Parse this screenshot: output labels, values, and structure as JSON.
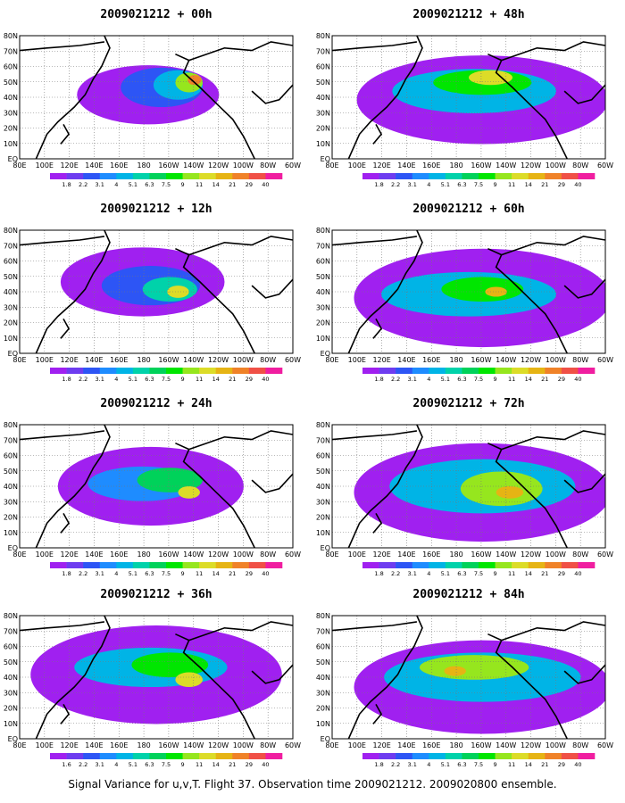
{
  "caption": "Signal Variance for u,v,T. Flight 37. Observation time 2009021212. 2009020800 ensemble.",
  "panels": [
    {
      "title": "2009021212 + 00h",
      "lead_hours": 0
    },
    {
      "title": "2009021212 + 48h",
      "lead_hours": 48
    },
    {
      "title": "2009021212 + 12h",
      "lead_hours": 12
    },
    {
      "title": "2009021212 + 60h",
      "lead_hours": 60
    },
    {
      "title": "2009021212 + 24h",
      "lead_hours": 24
    },
    {
      "title": "2009021212 + 72h",
      "lead_hours": 72
    },
    {
      "title": "2009021212 + 36h",
      "lead_hours": 36
    },
    {
      "title": "2009021212 + 84h",
      "lead_hours": 84
    }
  ],
  "map": {
    "lon_labels": [
      "80E",
      "100E",
      "120E",
      "140E",
      "160E",
      "180",
      "160W",
      "140W",
      "120W",
      "100W",
      "80W",
      "60W"
    ],
    "lat_labels": [
      "EQ",
      "10N",
      "20N",
      "30N",
      "40N",
      "50N",
      "60N",
      "70N",
      "80N"
    ]
  },
  "colorbar": {
    "labels": [
      "1.8",
      "2.2",
      "3.1",
      "4",
      "5.1",
      "6.3",
      "7.5",
      "9",
      "11",
      "14",
      "21",
      "29",
      "40"
    ],
    "labels_36h": [
      "1.6",
      "2.2",
      "3.1",
      "4",
      "5.1",
      "6.3",
      "7.5",
      "9",
      "11",
      "14",
      "21",
      "29",
      "40"
    ],
    "colors": [
      "#a020f0",
      "#6e3cf0",
      "#2d55f5",
      "#1e8cff",
      "#00b4e6",
      "#00d2aa",
      "#00d25a",
      "#00e600",
      "#96e61e",
      "#dcdc28",
      "#e6b414",
      "#f08228",
      "#f05046",
      "#f01ea0"
    ]
  }
}
